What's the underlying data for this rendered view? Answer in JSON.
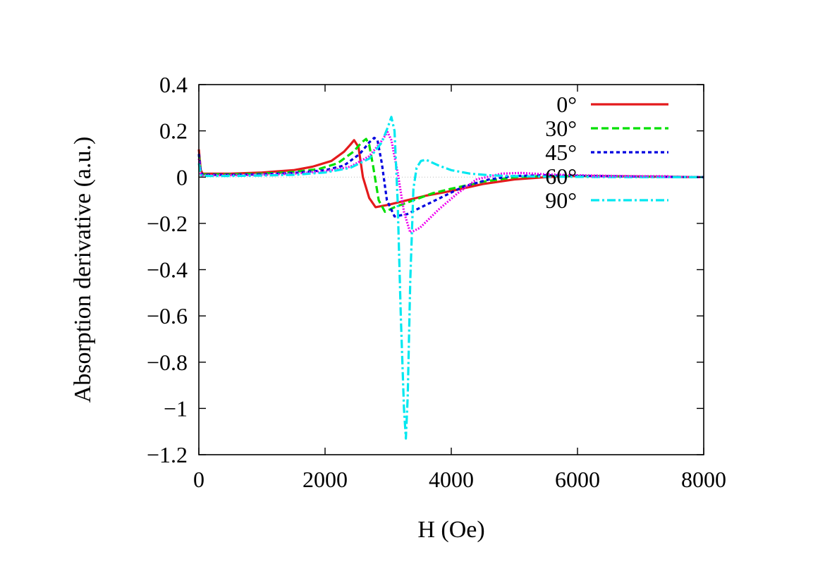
{
  "chart_data": {
    "type": "line",
    "title": "",
    "xlabel": "H (Oe)",
    "ylabel": "Absorption derivative (a.u.)",
    "xlim": [
      0,
      8000
    ],
    "ylim": [
      -1.2,
      0.4
    ],
    "x_ticks": [
      0,
      2000,
      4000,
      6000,
      8000
    ],
    "x_tick_labels": [
      "0",
      "2000",
      "4000",
      "6000",
      "8000"
    ],
    "y_ticks": [
      0.4,
      0.2,
      0,
      -0.2,
      -0.4,
      -0.6,
      -0.8,
      -1,
      -1.2
    ],
    "y_tick_labels": [
      "0.4",
      "0.2",
      "0",
      "−0.2",
      "−0.4",
      "−0.6",
      "−0.8",
      "−1",
      "−1.2"
    ],
    "zero_line": true,
    "legend_position": "top-right",
    "series": [
      {
        "name": "0°",
        "color": "#e41a1c",
        "dash": "solid",
        "x": [
          0,
          30,
          60,
          500,
          1000,
          1500,
          1800,
          2100,
          2300,
          2400,
          2460,
          2530,
          2600,
          2700,
          2800,
          3000,
          3300,
          3600,
          4000,
          4500,
          5000,
          5500,
          6000,
          7000,
          8000
        ],
        "y": [
          0.12,
          0.03,
          0.015,
          0.015,
          0.02,
          0.03,
          0.045,
          0.07,
          0.11,
          0.14,
          0.16,
          0.13,
          0.0,
          -0.09,
          -0.13,
          -0.12,
          -0.1,
          -0.08,
          -0.06,
          -0.03,
          -0.01,
          0.0,
          0.005,
          0.003,
          0.0
        ]
      },
      {
        "name": "30°",
        "color": "#00e000",
        "dash": "10,5",
        "x": [
          0,
          30,
          60,
          500,
          1000,
          1500,
          1900,
          2200,
          2450,
          2580,
          2650,
          2700,
          2760,
          2850,
          2950,
          3100,
          3400,
          3700,
          4000,
          4500,
          5000,
          5500,
          6000,
          7000,
          8000
        ],
        "y": [
          0.1,
          0.025,
          0.012,
          0.012,
          0.015,
          0.022,
          0.035,
          0.06,
          0.11,
          0.15,
          0.165,
          0.14,
          0.05,
          -0.1,
          -0.15,
          -0.13,
          -0.1,
          -0.07,
          -0.05,
          -0.02,
          0.0,
          0.005,
          0.005,
          0.002,
          0.0
        ]
      },
      {
        "name": "45°",
        "color": "#0000e0",
        "dash": "5,4",
        "x": [
          0,
          30,
          60,
          500,
          1000,
          1500,
          2000,
          2300,
          2550,
          2700,
          2780,
          2830,
          2900,
          2980,
          3100,
          3300,
          3600,
          3900,
          4200,
          4600,
          5000,
          5500,
          6000,
          7000,
          8000
        ],
        "y": [
          0.1,
          0.02,
          0.01,
          0.01,
          0.012,
          0.018,
          0.03,
          0.05,
          0.1,
          0.15,
          0.17,
          0.16,
          0.06,
          -0.1,
          -0.17,
          -0.16,
          -0.12,
          -0.08,
          -0.04,
          -0.01,
          0.005,
          0.008,
          0.006,
          0.002,
          0.0
        ]
      },
      {
        "name": "60°",
        "color": "#ee00ee",
        "dash": "2,2",
        "x": [
          0,
          30,
          60,
          500,
          1000,
          1500,
          2000,
          2400,
          2700,
          2880,
          2990,
          3050,
          3150,
          3250,
          3350,
          3500,
          3800,
          4100,
          4400,
          4800,
          5100,
          5500,
          6000,
          7000,
          8000
        ],
        "y": [
          0.08,
          0.015,
          0.008,
          0.008,
          0.01,
          0.015,
          0.025,
          0.045,
          0.09,
          0.15,
          0.195,
          0.16,
          0.02,
          -0.15,
          -0.24,
          -0.22,
          -0.14,
          -0.07,
          -0.01,
          0.015,
          0.018,
          0.012,
          0.008,
          0.003,
          0.0
        ]
      },
      {
        "name": "90°",
        "color": "#00e8f0",
        "dash": "12,4,3,4",
        "x": [
          0,
          30,
          60,
          500,
          1000,
          1500,
          2000,
          2400,
          2700,
          2900,
          3000,
          3050,
          3100,
          3150,
          3200,
          3250,
          3280,
          3310,
          3350,
          3400,
          3450,
          3520,
          3600,
          3800,
          4000,
          4300,
          4600,
          5000,
          5500,
          6000,
          7000,
          8000
        ],
        "y": [
          0.06,
          0.01,
          0.005,
          0.005,
          0.007,
          0.01,
          0.02,
          0.04,
          0.08,
          0.15,
          0.22,
          0.26,
          0.2,
          -0.1,
          -0.6,
          -1.0,
          -1.13,
          -0.95,
          -0.45,
          -0.05,
          0.04,
          0.07,
          0.075,
          0.05,
          0.03,
          0.015,
          0.008,
          0.004,
          0.002,
          0.001,
          0.0,
          0.0
        ]
      }
    ]
  }
}
